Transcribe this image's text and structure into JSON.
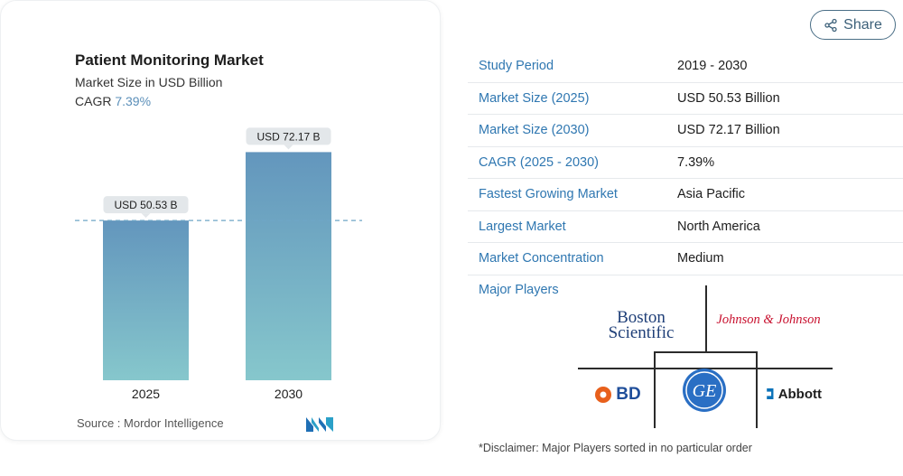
{
  "chart_card": {
    "title": "Patient Monitoring Market",
    "subtitle": "Market Size in USD Billion",
    "cagr_label": "CAGR",
    "cagr_value": "7.39%",
    "source": "Source :  Mordor Intelligence"
  },
  "chart_data": {
    "type": "bar",
    "categories": [
      "2025",
      "2030"
    ],
    "values": [
      50.53,
      72.17
    ],
    "data_labels": [
      "USD 50.53 B",
      "USD 72.17 B"
    ],
    "title": "Patient Monitoring Market",
    "subtitle": "Market Size in USD Billion",
    "xlabel": "",
    "ylabel": "",
    "ylim": [
      0,
      80
    ],
    "grid": false,
    "reference_line": 50.53,
    "colors": {
      "bar_top": "#6396bd",
      "bar_bottom": "#86c7cc",
      "reference_line": "#6fa6c6"
    }
  },
  "share": {
    "label": "Share",
    "icon": "share-icon"
  },
  "facts": [
    {
      "key": "Study Period",
      "value": "2019 - 2030"
    },
    {
      "key": "Market Size (2025)",
      "value": "USD 50.53 Billion"
    },
    {
      "key": "Market Size (2030)",
      "value": "USD 72.17 Billion"
    },
    {
      "key": "CAGR (2025 - 2030)",
      "value": "7.39%"
    },
    {
      "key": "Fastest Growing Market",
      "value": "Asia Pacific"
    },
    {
      "key": "Largest Market",
      "value": "North America"
    },
    {
      "key": "Market Concentration",
      "value": "Medium"
    }
  ],
  "major_players": {
    "label": "Major Players",
    "logos": {
      "boston_line1": "Boston",
      "boston_line2": "Scientific",
      "jj": "Johnson & Johnson",
      "bd": "BD",
      "ge": "GE",
      "abbott": "Abbott"
    }
  },
  "disclaimer": "*Disclaimer: Major Players sorted in no particular order",
  "colors": {
    "accent": "#2f77b1",
    "share_border": "#4a6e86"
  }
}
